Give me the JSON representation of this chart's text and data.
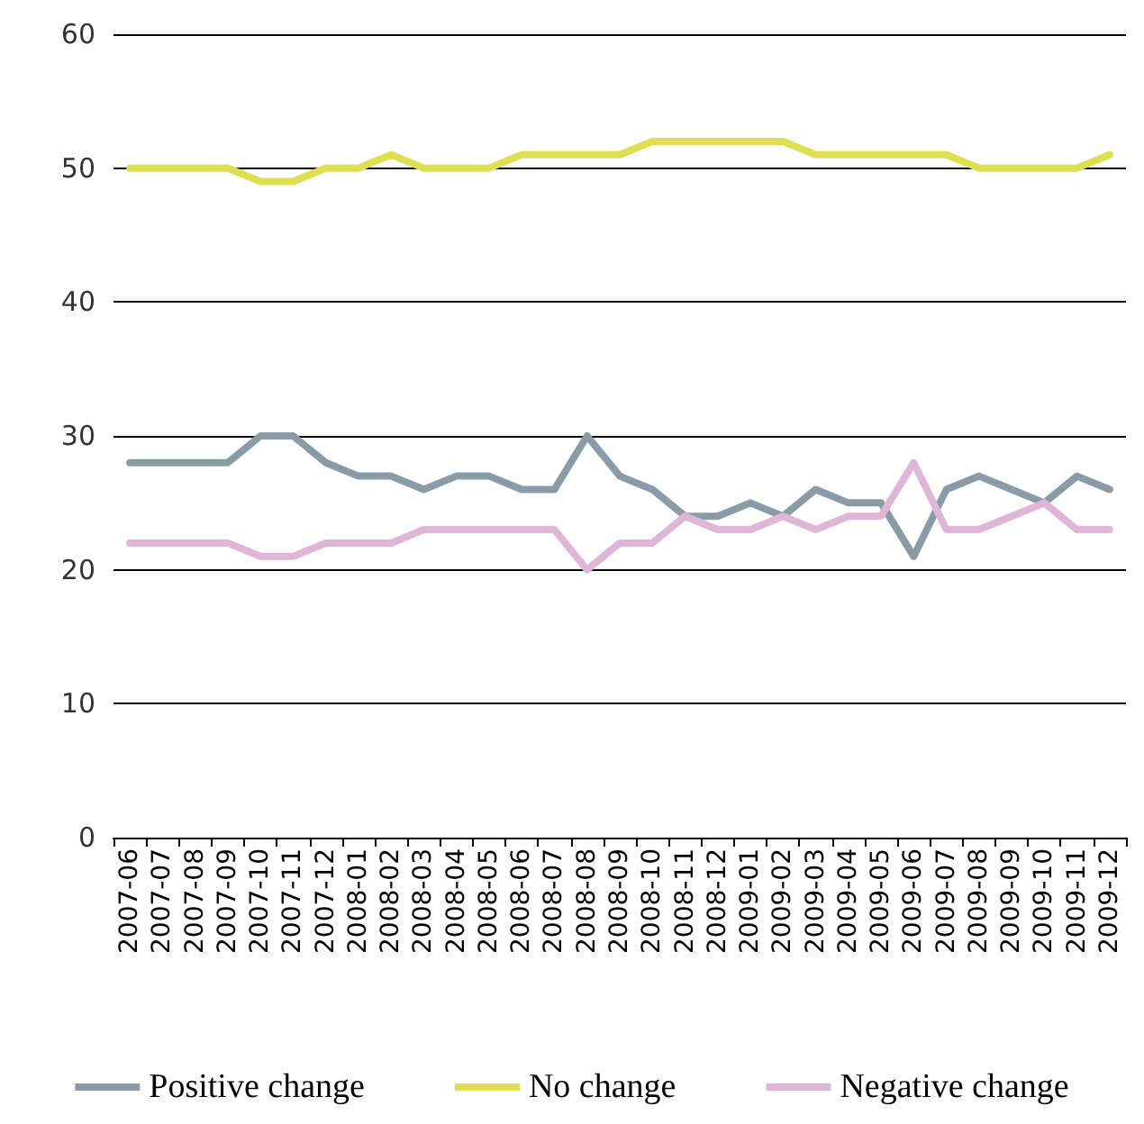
{
  "chart_data": {
    "type": "line",
    "categories": [
      "2007-06",
      "2007-07",
      "2007-08",
      "2007-09",
      "2007-10",
      "2007-11",
      "2007-12",
      "2008-01",
      "2008-02",
      "2008-03",
      "2008-04",
      "2008-05",
      "2008-06",
      "2008-07",
      "2008-08",
      "2008-09",
      "2008-10",
      "2008-11",
      "2008-12",
      "2009-01",
      "2009-02",
      "2009-03",
      "2009-04",
      "2009-05",
      "2009-06",
      "2009-07",
      "2009-08",
      "2009-09",
      "2009-10",
      "2009-11",
      "2009-12"
    ],
    "series": [
      {
        "name": "Positive change",
        "color": "#8a9ba8",
        "values": [
          28,
          28,
          28,
          28,
          30,
          30,
          28,
          27,
          27,
          26,
          27,
          27,
          26,
          26,
          30,
          27,
          26,
          24,
          24,
          25,
          24,
          26,
          25,
          25,
          21,
          26,
          27,
          26,
          25,
          27,
          26
        ]
      },
      {
        "name": "No change",
        "color": "#dede50",
        "values": [
          50,
          50,
          50,
          50,
          49,
          49,
          50,
          50,
          51,
          50,
          50,
          50,
          51,
          51,
          51,
          51,
          52,
          52,
          52,
          52,
          52,
          51,
          51,
          51,
          51,
          51,
          50,
          50,
          50,
          50,
          51
        ]
      },
      {
        "name": "Negative change",
        "color": "#e0b6d8",
        "values": [
          22,
          22,
          22,
          22,
          21,
          21,
          22,
          22,
          22,
          23,
          23,
          23,
          23,
          23,
          20,
          22,
          22,
          24,
          23,
          23,
          24,
          23,
          24,
          24,
          28,
          23,
          23,
          24,
          25,
          23,
          23
        ]
      }
    ],
    "ylim": [
      0,
      60
    ],
    "yticks": [
      0,
      10,
      20,
      30,
      40,
      50,
      60
    ],
    "grid": "y",
    "legend": "bottom",
    "marker": "none",
    "line_style": "solid"
  }
}
